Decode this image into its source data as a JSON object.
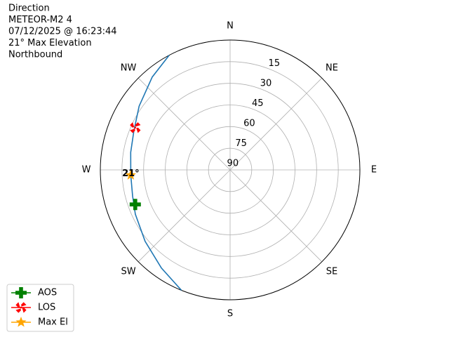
{
  "chart_data": {
    "type": "polar",
    "title": [
      "Direction",
      "METEOR-M2 4",
      "07/12/2025 @ 16:23:44",
      "21° Max Elevation",
      "Northbound"
    ],
    "rlim": [
      90,
      0
    ],
    "rticks": [
      15,
      30,
      45,
      60,
      75,
      90
    ],
    "thetaticks": [
      {
        "value": 0,
        "label": "N"
      },
      {
        "value": 45,
        "label": "NE"
      },
      {
        "value": 90,
        "label": "E"
      },
      {
        "value": 135,
        "label": "SE"
      },
      {
        "value": 180,
        "label": "S"
      },
      {
        "value": 225,
        "label": "SW"
      },
      {
        "value": 270,
        "label": "W"
      },
      {
        "value": 315,
        "label": "NW"
      }
    ],
    "grid": true,
    "track": {
      "color": "#1f77b4",
      "azimuth": [
        202,
        215,
        230,
        245,
        255,
        267,
        280,
        292,
        305,
        320,
        332
      ],
      "elevation": [
        0,
        7,
        13,
        17.5,
        20,
        21,
        20,
        18,
        13,
        6,
        0
      ]
    },
    "series": [
      {
        "name": "AOS",
        "color": "green",
        "marker": "plus",
        "azimuth": [
          250
        ],
        "values": [
          20
        ]
      },
      {
        "name": "LOS",
        "color": "red",
        "marker": "x",
        "azimuth": [
          294
        ],
        "values": [
          18
        ]
      },
      {
        "name": "Max El",
        "color": "orange",
        "marker": "star",
        "azimuth": [
          267
        ],
        "values": [
          21
        ],
        "value_labels": [
          "21°"
        ]
      }
    ],
    "legend": "lower left"
  }
}
